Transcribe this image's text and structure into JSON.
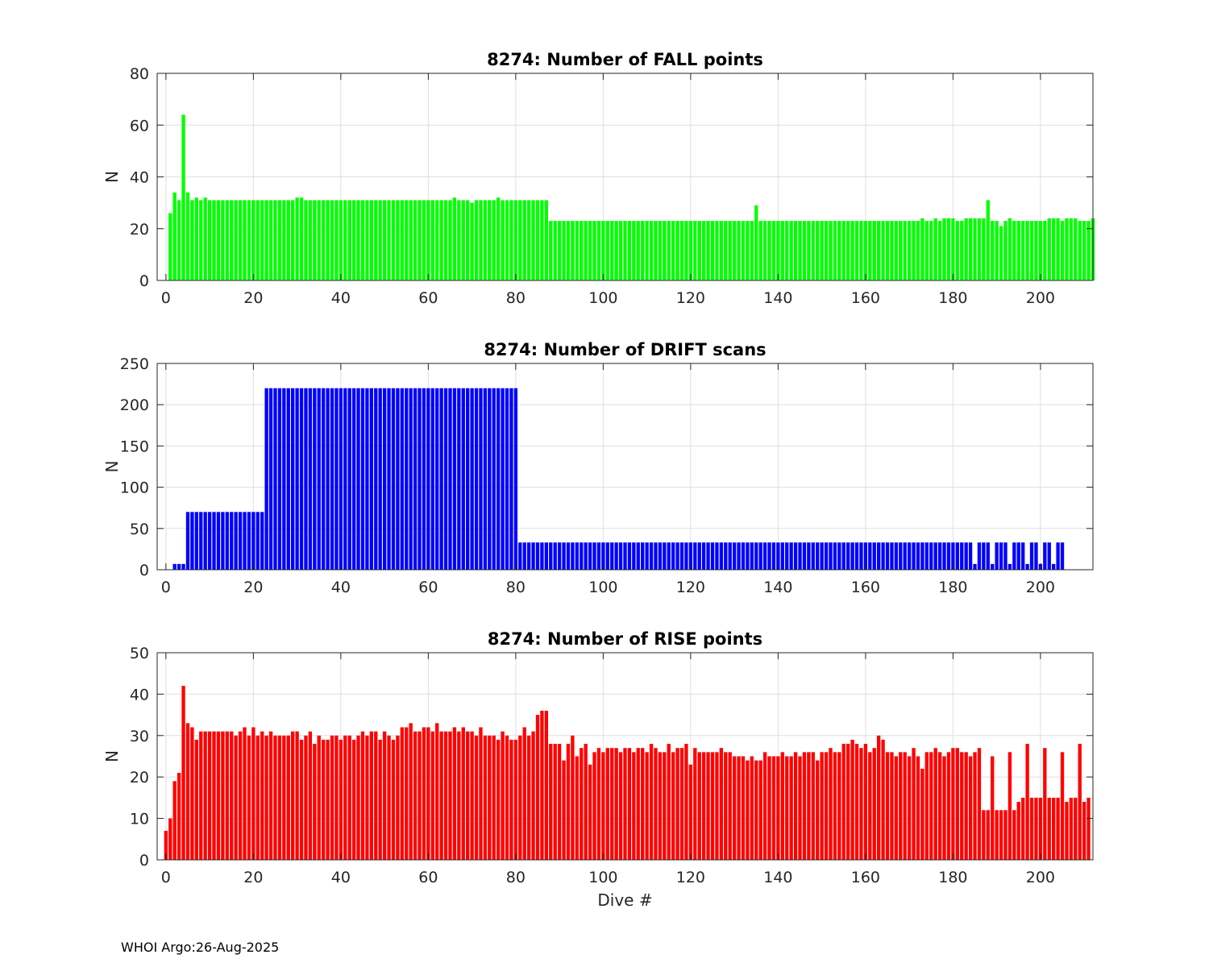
{
  "footer": "WHOI Argo:26-Aug-2025",
  "chart_data": [
    {
      "type": "bar",
      "title": "8274: Number of FALL points",
      "xlabel": "",
      "ylabel": "N",
      "xlim": [
        -2,
        212
      ],
      "ylim": [
        0,
        80
      ],
      "xticks": [
        0,
        20,
        40,
        60,
        80,
        100,
        120,
        140,
        160,
        180,
        200
      ],
      "yticks": [
        0,
        20,
        40,
        60,
        80
      ],
      "grid": true,
      "color": "#00ff00",
      "x_start": 0,
      "values": [
        0,
        26,
        34,
        31,
        64,
        34,
        31,
        32,
        31,
        32,
        31,
        31,
        31,
        31,
        31,
        31,
        31,
        31,
        31,
        31,
        31,
        31,
        31,
        31,
        31,
        31,
        31,
        31,
        31,
        31,
        32,
        32,
        31,
        31,
        31,
        31,
        31,
        31,
        31,
        31,
        31,
        31,
        31,
        31,
        31,
        31,
        31,
        31,
        31,
        31,
        31,
        31,
        31,
        31,
        31,
        31,
        31,
        31,
        31,
        31,
        31,
        31,
        31,
        31,
        31,
        31,
        32,
        31,
        31,
        31,
        30,
        31,
        31,
        31,
        31,
        31,
        32,
        31,
        31,
        31,
        31,
        31,
        31,
        31,
        31,
        31,
        31,
        31,
        23,
        23,
        23,
        23,
        23,
        23,
        23,
        23,
        23,
        23,
        23,
        23,
        23,
        23,
        23,
        23,
        23,
        23,
        23,
        23,
        23,
        23,
        23,
        23,
        23,
        23,
        23,
        23,
        23,
        23,
        23,
        23,
        23,
        23,
        23,
        23,
        23,
        23,
        23,
        23,
        23,
        23,
        23,
        23,
        23,
        23,
        23,
        29,
        23,
        23,
        23,
        23,
        23,
        23,
        23,
        23,
        23,
        23,
        23,
        23,
        23,
        23,
        23,
        23,
        23,
        23,
        23,
        23,
        23,
        23,
        23,
        23,
        23,
        23,
        23,
        23,
        23,
        23,
        23,
        23,
        23,
        23,
        23,
        23,
        23,
        24,
        23,
        23,
        24,
        23,
        24,
        24,
        24,
        23,
        23,
        24,
        24,
        24,
        24,
        24,
        31,
        23,
        23,
        21,
        23,
        24,
        23,
        23,
        23,
        23,
        23,
        23,
        23,
        23,
        24,
        24,
        24,
        23,
        24,
        24,
        24,
        23,
        23,
        23,
        24
      ]
    },
    {
      "type": "bar",
      "title": "8274: Number of DRIFT scans",
      "xlabel": "",
      "ylabel": "N",
      "xlim": [
        -2,
        212
      ],
      "ylim": [
        0,
        250
      ],
      "xticks": [
        0,
        20,
        40,
        60,
        80,
        100,
        120,
        140,
        160,
        180,
        200
      ],
      "yticks": [
        0,
        50,
        100,
        150,
        200,
        250
      ],
      "grid": true,
      "color": "#0000ff",
      "x_start": 0,
      "values": [
        0,
        0,
        7,
        7,
        7,
        70,
        70,
        70,
        70,
        70,
        70,
        70,
        70,
        70,
        70,
        70,
        70,
        70,
        70,
        70,
        70,
        70,
        70,
        220,
        220,
        220,
        220,
        220,
        220,
        220,
        220,
        220,
        220,
        220,
        220,
        220,
        220,
        220,
        220,
        220,
        220,
        220,
        220,
        220,
        220,
        220,
        220,
        220,
        220,
        220,
        220,
        220,
        220,
        220,
        220,
        220,
        220,
        220,
        220,
        220,
        220,
        220,
        220,
        220,
        220,
        220,
        220,
        220,
        220,
        220,
        220,
        220,
        220,
        220,
        220,
        220,
        220,
        220,
        220,
        220,
        220,
        33,
        33,
        33,
        33,
        33,
        33,
        33,
        33,
        33,
        33,
        33,
        33,
        33,
        33,
        33,
        33,
        33,
        33,
        33,
        33,
        33,
        33,
        33,
        33,
        33,
        33,
        33,
        33,
        33,
        33,
        33,
        33,
        33,
        33,
        33,
        33,
        33,
        33,
        33,
        33,
        33,
        33,
        33,
        33,
        33,
        33,
        33,
        33,
        33,
        33,
        33,
        33,
        33,
        33,
        33,
        33,
        33,
        33,
        33,
        33,
        33,
        33,
        33,
        33,
        33,
        33,
        33,
        33,
        33,
        33,
        33,
        33,
        33,
        33,
        33,
        33,
        33,
        33,
        33,
        33,
        33,
        33,
        33,
        33,
        33,
        33,
        33,
        33,
        33,
        33,
        33,
        33,
        33,
        33,
        33,
        33,
        33,
        33,
        33,
        33,
        33,
        33,
        33,
        33,
        7,
        33,
        33,
        33,
        7,
        33,
        33,
        33,
        7,
        33,
        33,
        33,
        7,
        33,
        33,
        7,
        33,
        33,
        7,
        33,
        33
      ]
    },
    {
      "type": "bar",
      "title": "8274: Number of RISE points",
      "xlabel": "Dive #",
      "ylabel": "N",
      "xlim": [
        -2,
        212
      ],
      "ylim": [
        0,
        50
      ],
      "xticks": [
        0,
        20,
        40,
        60,
        80,
        100,
        120,
        140,
        160,
        180,
        200
      ],
      "yticks": [
        0,
        10,
        20,
        30,
        40,
        50
      ],
      "grid": true,
      "color": "#ff0000",
      "x_start": 0,
      "values": [
        7,
        10,
        19,
        21,
        42,
        33,
        32,
        29,
        31,
        31,
        31,
        31,
        31,
        31,
        31,
        31,
        30,
        31,
        32,
        30,
        32,
        30,
        31,
        30,
        31,
        30,
        30,
        30,
        30,
        31,
        31,
        29,
        30,
        31,
        28,
        30,
        29,
        29,
        30,
        30,
        29,
        30,
        30,
        29,
        30,
        31,
        30,
        31,
        31,
        29,
        31,
        30,
        29,
        30,
        32,
        32,
        33,
        31,
        31,
        32,
        32,
        31,
        33,
        31,
        31,
        31,
        32,
        31,
        32,
        31,
        31,
        30,
        32,
        30,
        30,
        30,
        29,
        31,
        30,
        29,
        29,
        30,
        32,
        30,
        31,
        35,
        36,
        36,
        28,
        28,
        28,
        24,
        28,
        30,
        25,
        27,
        28,
        23,
        26,
        27,
        26,
        27,
        27,
        27,
        26,
        27,
        27,
        26,
        27,
        27,
        26,
        28,
        27,
        26,
        26,
        28,
        26,
        27,
        27,
        28,
        23,
        27,
        26,
        26,
        26,
        26,
        26,
        27,
        26,
        26,
        25,
        25,
        25,
        24,
        25,
        24,
        24,
        26,
        25,
        25,
        25,
        26,
        25,
        25,
        26,
        25,
        26,
        26,
        26,
        24,
        26,
        26,
        27,
        26,
        26,
        28,
        28,
        29,
        28,
        27,
        28,
        26,
        27,
        30,
        29,
        26,
        26,
        25,
        26,
        26,
        25,
        27,
        25,
        22,
        26,
        26,
        27,
        26,
        25,
        26,
        27,
        27,
        26,
        26,
        25,
        26,
        27,
        12,
        12,
        25,
        12,
        12,
        12,
        26,
        12,
        14,
        15,
        28,
        15,
        15,
        15,
        27,
        15,
        15,
        15,
        26,
        14,
        15,
        15,
        28,
        14,
        15
      ]
    }
  ]
}
